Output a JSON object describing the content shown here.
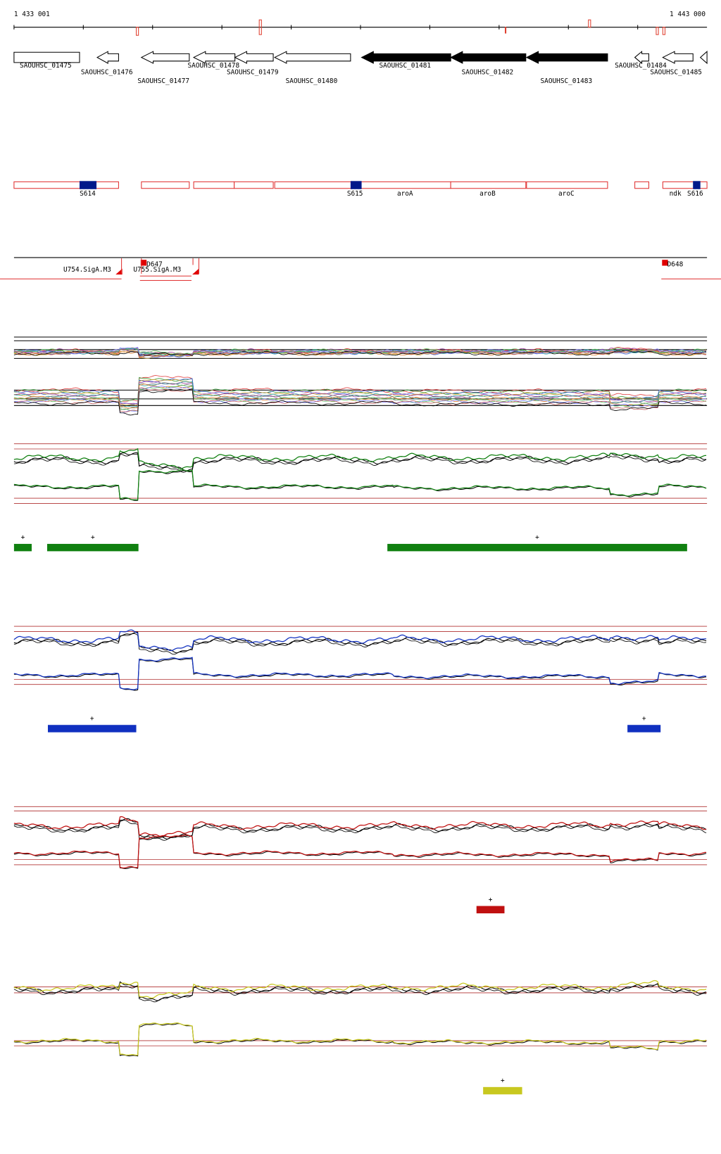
{
  "header": {
    "start": "1 433 001",
    "end": "1 443 000"
  },
  "genes": [
    {
      "label": "SAOUHSC_01475"
    },
    {
      "label": "SAOUHSC_01476"
    },
    {
      "label": "SAOUHSC_01477"
    },
    {
      "label": "SAOUHSC_01478"
    },
    {
      "label": "SAOUHSC_01479"
    },
    {
      "label": "SAOUHSC_01480"
    },
    {
      "label": "SAOUHSC_01481"
    },
    {
      "label": "SAOUHSC_01482"
    },
    {
      "label": "SAOUHSC_01483"
    },
    {
      "label": "SAOUHSC_01484"
    },
    {
      "label": "SAOUHSC_01485"
    }
  ],
  "segments": [
    {
      "label": "S614"
    },
    {
      "label": "S615"
    },
    {
      "label": "aroA"
    },
    {
      "label": "aroB"
    },
    {
      "label": "aroC"
    },
    {
      "label": "ndk"
    },
    {
      "label": "S616"
    }
  ],
  "promoters": [
    {
      "label": "U754.SigA.M3"
    },
    {
      "label": "U755.SigA.M3"
    },
    {
      "label": "D647"
    },
    {
      "label": "D648"
    }
  ],
  "tracks": [
    {
      "marks": [
        "+",
        "+",
        "+"
      ]
    },
    {
      "marks": [
        "+",
        "+"
      ]
    },
    {
      "marks": [
        "+"
      ]
    },
    {
      "marks": [
        "+"
      ]
    }
  ]
}
